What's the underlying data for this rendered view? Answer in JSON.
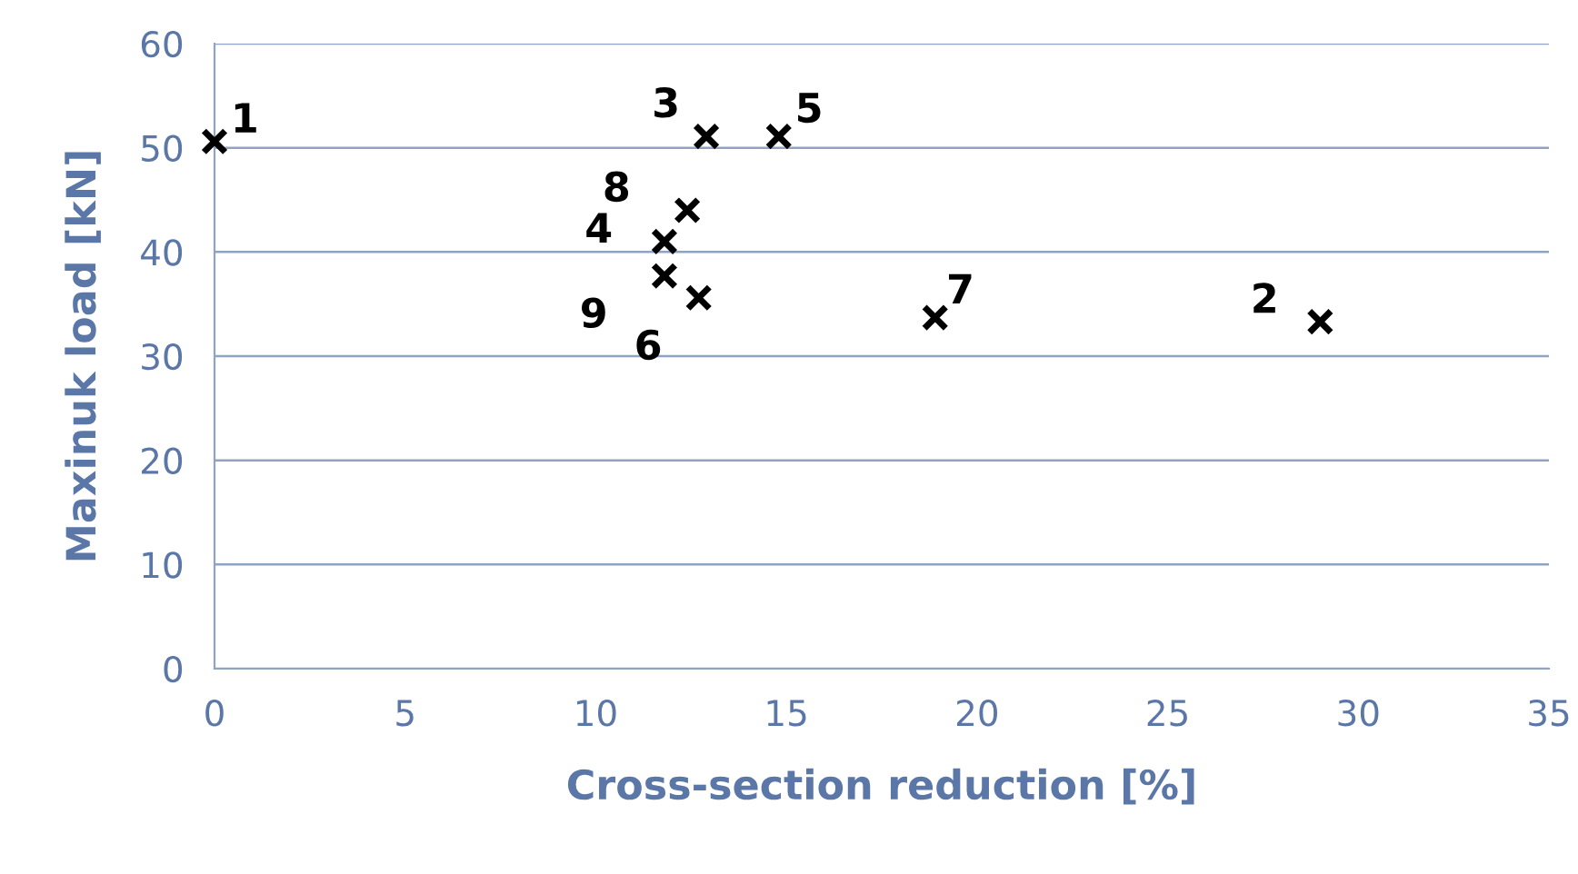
{
  "chart_data": {
    "type": "scatter",
    "xlabel": "Cross-section reduction [%]",
    "ylabel": "Maxinuk load [kN]",
    "x": [
      0,
      29.0,
      12.9,
      11.8,
      14.8,
      12.7,
      18.9,
      12.4,
      11.8
    ],
    "values": [
      50.6,
      33.3,
      51.1,
      41.0,
      51.1,
      35.6,
      33.7,
      44.0,
      37.7
    ],
    "color": "#000000",
    "marker": "cross",
    "xlim": [
      0,
      35
    ],
    "xticks": [
      0,
      5,
      10,
      15,
      20,
      25,
      30,
      35
    ],
    "ylim": [
      0,
      60
    ],
    "yticks": [
      0,
      10,
      20,
      30,
      40,
      50,
      60
    ],
    "grid": "y",
    "legend": false,
    "annotations": [
      {
        "text": "1",
        "x": 0,
        "y": 50.6
      },
      {
        "text": "2",
        "x": 29.0,
        "y": 33.3
      },
      {
        "text": "3",
        "x": 12.9,
        "y": 51.1
      },
      {
        "text": "4",
        "x": 11.8,
        "y": 41.0
      },
      {
        "text": "5",
        "x": 14.8,
        "y": 51.1
      },
      {
        "text": "6",
        "x": 12.7,
        "y": 35.6
      },
      {
        "text": "7",
        "x": 18.9,
        "y": 33.7
      },
      {
        "text": "8",
        "x": 12.4,
        "y": 44.0
      },
      {
        "text": "9",
        "x": 11.8,
        "y": 37.7
      }
    ]
  }
}
